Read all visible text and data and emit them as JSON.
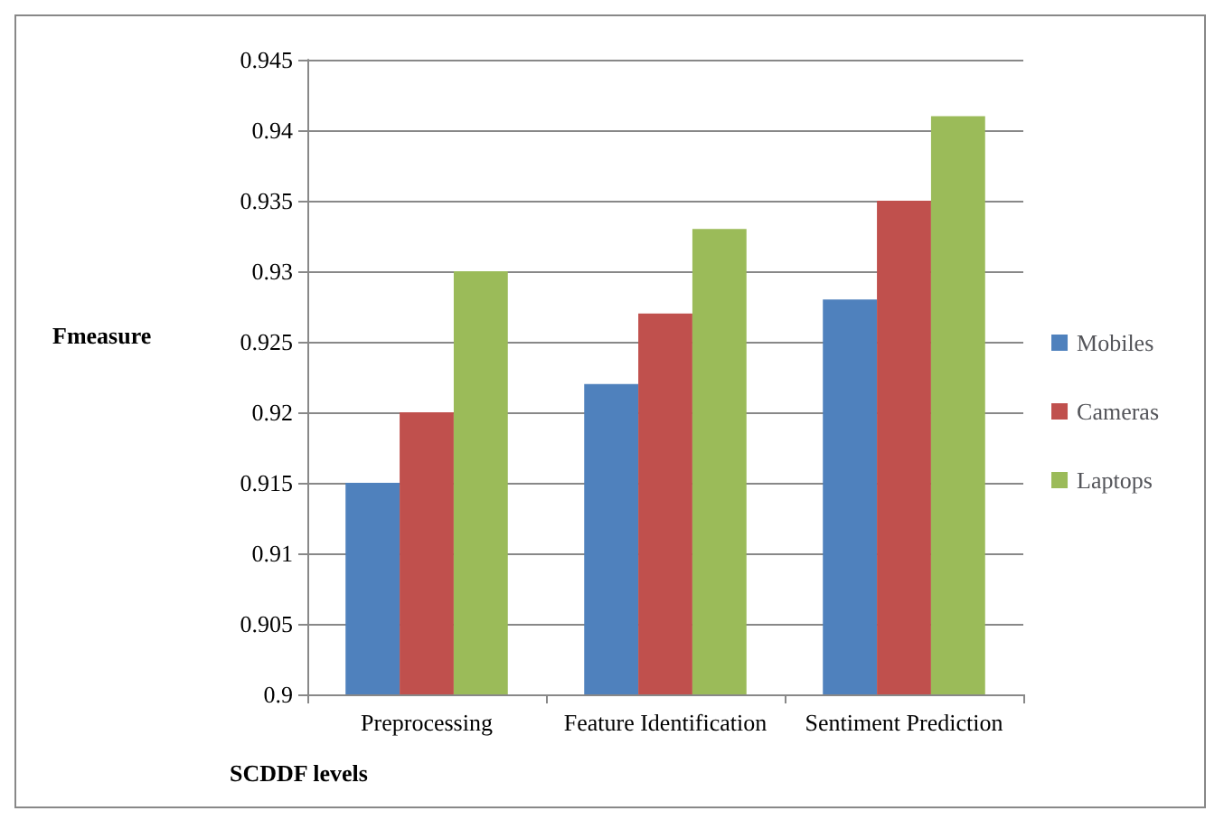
{
  "chart_data": {
    "type": "bar",
    "xlabel": "SCDDF levels",
    "ylabel": "Fmeasure",
    "categories": [
      "Preprocessing",
      "Feature Identification",
      "Sentiment Prediction"
    ],
    "series": [
      {
        "name": "Mobiles",
        "color": "#4f81bd",
        "values": [
          0.915,
          0.922,
          0.928
        ]
      },
      {
        "name": "Cameras",
        "color": "#c0504d",
        "values": [
          0.92,
          0.927,
          0.935
        ]
      },
      {
        "name": "Laptops",
        "color": "#9bbb59",
        "values": [
          0.93,
          0.933,
          0.941
        ]
      }
    ],
    "ylim": [
      0.9,
      0.945
    ],
    "yticks": [
      0.9,
      0.905,
      0.91,
      0.915,
      0.92,
      0.925,
      0.93,
      0.935,
      0.94,
      0.945
    ],
    "grid": "y",
    "legend": "right"
  }
}
